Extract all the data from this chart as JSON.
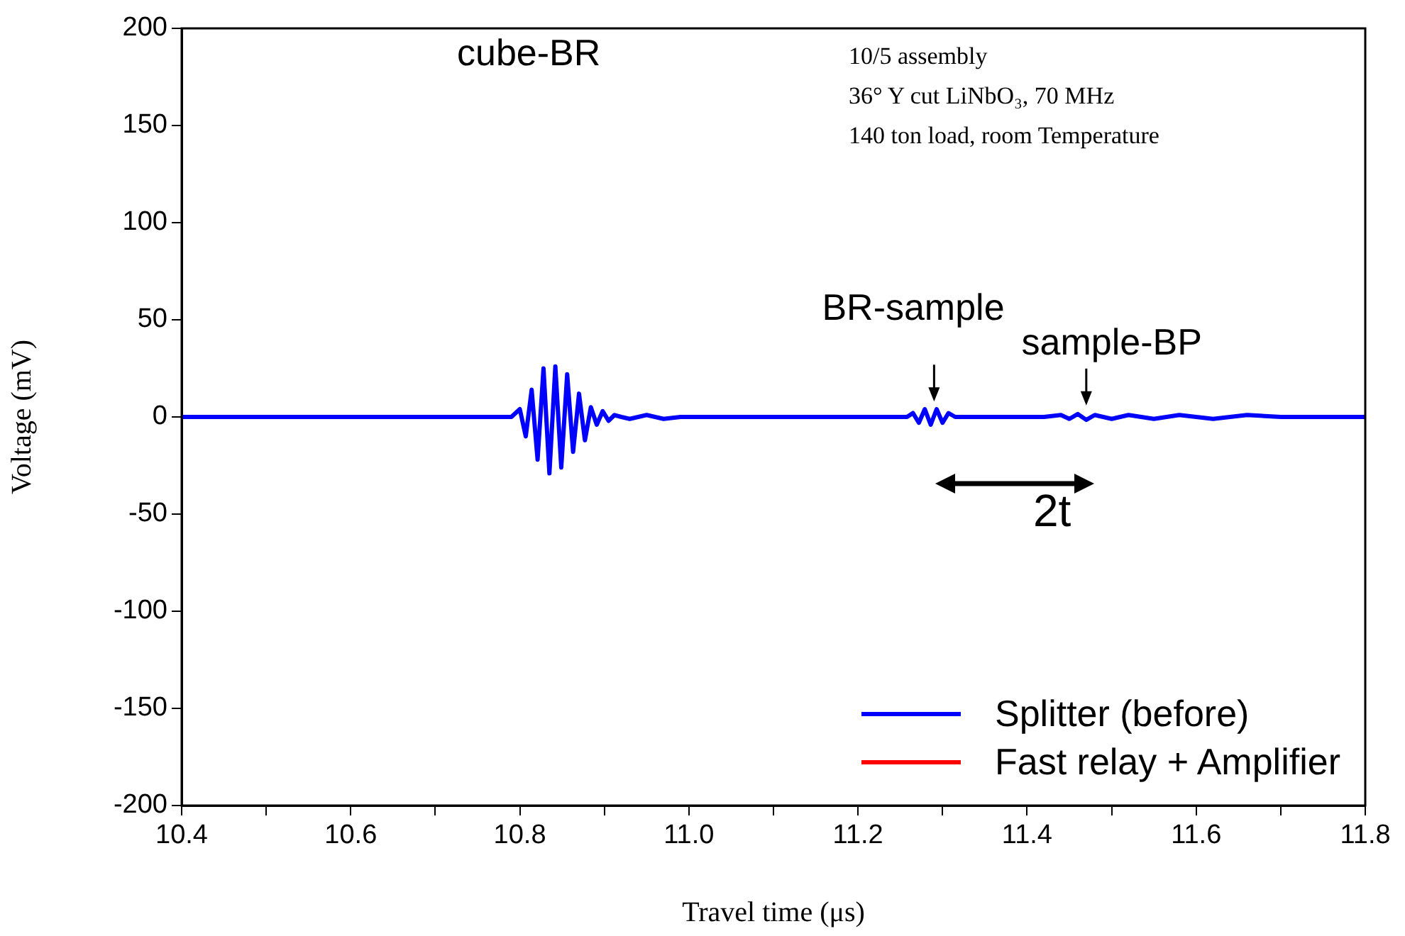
{
  "chart_data": {
    "type": "line",
    "xlabel": "Travel time (μs)",
    "ylabel": "Voltage (mV)",
    "xlim": [
      10.4,
      11.8
    ],
    "ylim": [
      -200,
      200
    ],
    "xticks": [
      {
        "value": 10.4,
        "label": "10.4"
      },
      {
        "value": 10.5,
        "label": null
      },
      {
        "value": 10.6,
        "label": "10.6"
      },
      {
        "value": 10.7,
        "label": null
      },
      {
        "value": 10.8,
        "label": "10.8"
      },
      {
        "value": 10.9,
        "label": null
      },
      {
        "value": 11,
        "label": "11.0"
      },
      {
        "value": 11.1,
        "label": null
      },
      {
        "value": 11.2,
        "label": "11.2"
      },
      {
        "value": 11.3,
        "label": null
      },
      {
        "value": 11.4,
        "label": "11.4"
      },
      {
        "value": 11.5,
        "label": null
      },
      {
        "value": 11.6,
        "label": "11.6"
      },
      {
        "value": 11.7,
        "label": null
      },
      {
        "value": 11.8,
        "label": "11.8"
      }
    ],
    "yticks": [
      -200,
      -150,
      -100,
      -50,
      0,
      50,
      100,
      150,
      200
    ],
    "x": [
      10.4,
      10.6,
      10.79,
      10.8,
      10.807,
      10.814,
      10.821,
      10.828,
      10.835,
      10.842,
      10.849,
      10.856,
      10.863,
      10.87,
      10.877,
      10.884,
      10.891,
      10.898,
      10.905,
      10.912,
      10.92,
      10.93,
      10.95,
      10.97,
      10.99,
      11.1,
      11.258,
      11.265,
      11.272,
      11.279,
      11.286,
      11.293,
      11.3,
      11.307,
      11.315,
      11.42,
      11.44,
      11.45,
      11.46,
      11.47,
      11.48,
      11.5,
      11.52,
      11.55,
      11.58,
      11.62,
      11.66,
      11.7,
      11.8
    ],
    "series": [
      {
        "name": "Splitter (before)",
        "color": "#0000ff",
        "values": [
          0,
          0,
          0,
          4,
          -10,
          14,
          -22,
          25,
          -29,
          26,
          -26,
          22,
          -18,
          12,
          -12,
          5,
          -4,
          3,
          -2,
          1,
          0,
          -1,
          1,
          -1,
          0,
          0,
          0,
          2,
          -3,
          4,
          -4,
          4,
          -3,
          2,
          0,
          0,
          1,
          -1,
          1.5,
          -1.5,
          1,
          -1,
          1,
          -1,
          1,
          -1,
          1,
          0,
          0
        ]
      },
      {
        "name": "Fast relay + Amplifier",
        "color": "#ff0000",
        "values": [
          null,
          null,
          null,
          null,
          null,
          null,
          null,
          null,
          null,
          null,
          null,
          null,
          null,
          null,
          null,
          null,
          null,
          null,
          null,
          null,
          null,
          null,
          null,
          null,
          null,
          null,
          null,
          null,
          null,
          null,
          null,
          null,
          null,
          null,
          null,
          null,
          null,
          null,
          null,
          null,
          null,
          null,
          null,
          null,
          null,
          null,
          null,
          null,
          null
        ]
      }
    ],
    "legend": "bottom right",
    "line_style": "solid",
    "marker": "none",
    "grid": false,
    "annotations": [
      "cube-BR",
      "10/5 assembly",
      "36° Y cut LiNbO₃, 70 MHz",
      "140 ton load, room Temperature",
      "2t",
      {
        "text": "BR-sample",
        "x": 11.29,
        "y": 5
      },
      {
        "text": "sample-BP",
        "x": 11.47,
        "y": 3
      }
    ]
  }
}
